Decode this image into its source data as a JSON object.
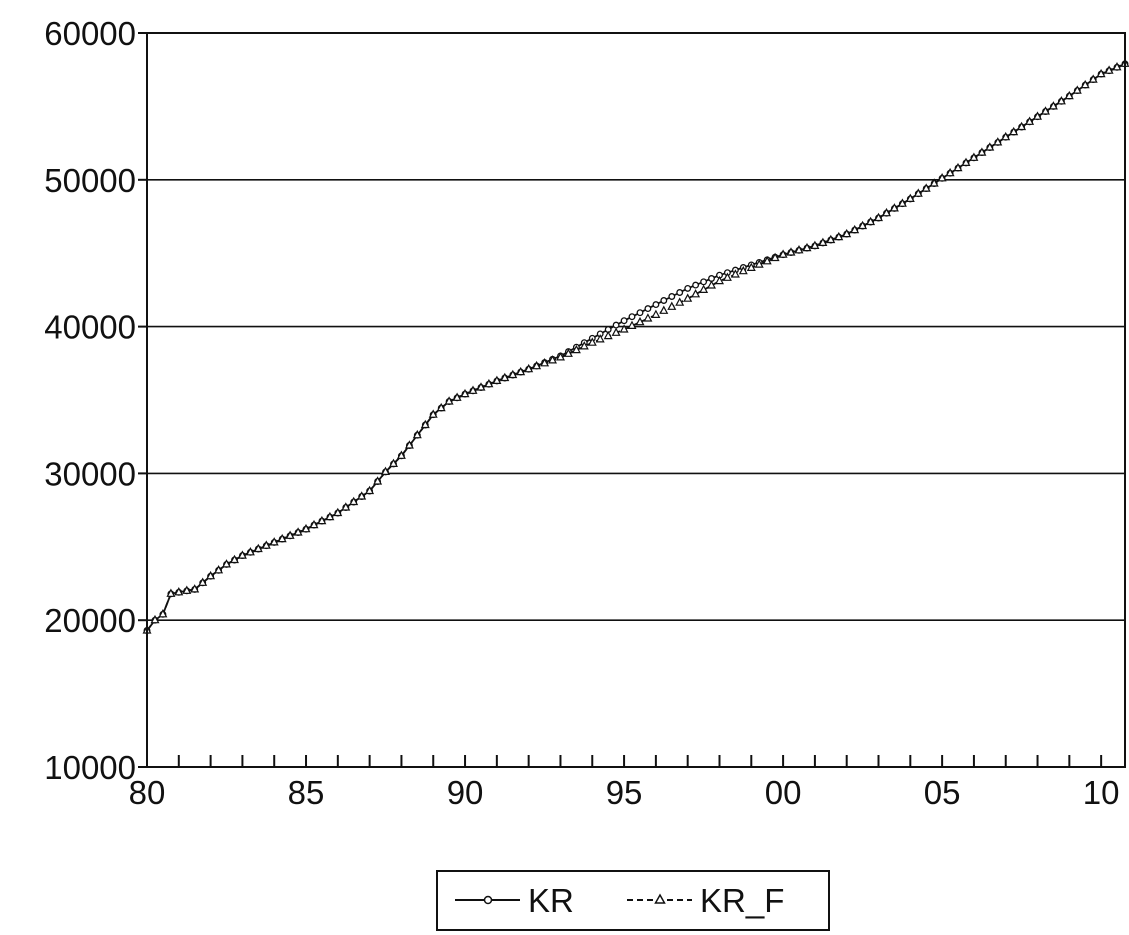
{
  "chart_data": {
    "type": "line",
    "title": "",
    "xlabel": "",
    "ylabel": "",
    "x_start": 1980.0,
    "x_end": 2010.75,
    "x_step": 0.25,
    "x_tick_values": [
      1980,
      1985,
      1990,
      1995,
      2000,
      2005,
      2010
    ],
    "x_tick_labels": [
      "80",
      "85",
      "90",
      "95",
      "00",
      "05",
      "10"
    ],
    "xlim": [
      1980,
      2010.75
    ],
    "ylim": [
      10000,
      60000
    ],
    "y_ticks": [
      10000,
      20000,
      30000,
      40000,
      50000,
      60000
    ],
    "y_tick_labels": [
      "10000",
      "20000",
      "30000",
      "40000",
      "50000",
      "60000"
    ],
    "gridlines": "horizontal",
    "legend_position": "bottom-center",
    "series": [
      {
        "name": "KR",
        "line_style": "solid",
        "marker": "circle",
        "color": "#111111",
        "anchors": [
          [
            1980.0,
            19300
          ],
          [
            1980.25,
            20000
          ],
          [
            1980.5,
            20400
          ],
          [
            1980.75,
            21800
          ],
          [
            1981.0,
            21900
          ],
          [
            1981.5,
            22100
          ],
          [
            1982.0,
            23000
          ],
          [
            1982.5,
            23800
          ],
          [
            1983.0,
            24400
          ],
          [
            1984.0,
            25300
          ],
          [
            1985.0,
            26200
          ],
          [
            1986.0,
            27300
          ],
          [
            1987.0,
            28800
          ],
          [
            1987.5,
            30100
          ],
          [
            1988.0,
            31200
          ],
          [
            1988.5,
            32600
          ],
          [
            1989.0,
            34000
          ],
          [
            1989.5,
            34900
          ],
          [
            1990.0,
            35400
          ],
          [
            1991.0,
            36300
          ],
          [
            1992.0,
            37100
          ],
          [
            1993.0,
            38000
          ],
          [
            1994.0,
            39200
          ],
          [
            1995.0,
            40400
          ],
          [
            1996.0,
            41500
          ],
          [
            1997.0,
            42600
          ],
          [
            1998.0,
            43500
          ],
          [
            1999.0,
            44200
          ],
          [
            2000.0,
            44900
          ],
          [
            2001.0,
            45500
          ],
          [
            2002.0,
            46300
          ],
          [
            2003.0,
            47400
          ],
          [
            2004.0,
            48700
          ],
          [
            2005.0,
            50100
          ],
          [
            2006.0,
            51500
          ],
          [
            2007.0,
            52900
          ],
          [
            2008.0,
            54300
          ],
          [
            2009.0,
            55700
          ],
          [
            2010.0,
            57200
          ],
          [
            2010.75,
            57900
          ]
        ]
      },
      {
        "name": "KR_F",
        "line_style": "dashed",
        "marker": "triangle",
        "color": "#111111",
        "anchors": [
          [
            1980.0,
            19300
          ],
          [
            1980.25,
            20000
          ],
          [
            1980.5,
            20400
          ],
          [
            1980.75,
            21800
          ],
          [
            1981.0,
            21900
          ],
          [
            1981.5,
            22100
          ],
          [
            1982.0,
            23000
          ],
          [
            1982.5,
            23800
          ],
          [
            1983.0,
            24400
          ],
          [
            1984.0,
            25300
          ],
          [
            1985.0,
            26200
          ],
          [
            1986.0,
            27300
          ],
          [
            1987.0,
            28800
          ],
          [
            1987.5,
            30100
          ],
          [
            1988.0,
            31200
          ],
          [
            1988.5,
            32600
          ],
          [
            1989.0,
            34000
          ],
          [
            1989.5,
            34900
          ],
          [
            1990.0,
            35400
          ],
          [
            1991.0,
            36300
          ],
          [
            1992.0,
            37100
          ],
          [
            1993.0,
            37900
          ],
          [
            1994.0,
            38900
          ],
          [
            1995.0,
            39800
          ],
          [
            1996.0,
            40800
          ],
          [
            1997.0,
            41900
          ],
          [
            1998.0,
            43100
          ],
          [
            1999.0,
            44000
          ],
          [
            2000.0,
            44900
          ],
          [
            2001.0,
            45500
          ],
          [
            2002.0,
            46300
          ],
          [
            2003.0,
            47400
          ],
          [
            2004.0,
            48700
          ],
          [
            2005.0,
            50100
          ],
          [
            2006.0,
            51500
          ],
          [
            2007.0,
            52900
          ],
          [
            2008.0,
            54300
          ],
          [
            2009.0,
            55700
          ],
          [
            2010.0,
            57200
          ],
          [
            2010.75,
            57900
          ]
        ]
      }
    ]
  }
}
